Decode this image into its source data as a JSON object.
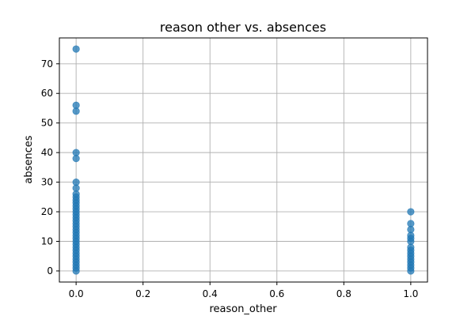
{
  "chart_data": {
    "type": "scatter",
    "title": "reason other vs. absences",
    "xlabel": "reason_other",
    "ylabel": "absences",
    "xlim": [
      -0.05,
      1.05
    ],
    "ylim": [
      -3.75,
      78.75
    ],
    "xticks": [
      0.0,
      0.2,
      0.4,
      0.6,
      0.8,
      1.0
    ],
    "xtick_labels": [
      "0.0",
      "0.2",
      "0.4",
      "0.6",
      "0.8",
      "1.0"
    ],
    "yticks": [
      0,
      10,
      20,
      30,
      40,
      50,
      60,
      70
    ],
    "ytick_labels": [
      "0",
      "10",
      "20",
      "30",
      "40",
      "50",
      "60",
      "70"
    ],
    "grid": true,
    "legend": null,
    "series": [
      {
        "color": "#1f77b4",
        "alpha": 0.75,
        "points": [
          {
            "x": 0,
            "y": 0
          },
          {
            "x": 0,
            "y": 1
          },
          {
            "x": 0,
            "y": 2
          },
          {
            "x": 0,
            "y": 3
          },
          {
            "x": 0,
            "y": 4
          },
          {
            "x": 0,
            "y": 5
          },
          {
            "x": 0,
            "y": 6
          },
          {
            "x": 0,
            "y": 7
          },
          {
            "x": 0,
            "y": 8
          },
          {
            "x": 0,
            "y": 9
          },
          {
            "x": 0,
            "y": 10
          },
          {
            "x": 0,
            "y": 11
          },
          {
            "x": 0,
            "y": 12
          },
          {
            "x": 0,
            "y": 13
          },
          {
            "x": 0,
            "y": 14
          },
          {
            "x": 0,
            "y": 15
          },
          {
            "x": 0,
            "y": 16
          },
          {
            "x": 0,
            "y": 17
          },
          {
            "x": 0,
            "y": 18
          },
          {
            "x": 0,
            "y": 19
          },
          {
            "x": 0,
            "y": 20
          },
          {
            "x": 0,
            "y": 21
          },
          {
            "x": 0,
            "y": 22
          },
          {
            "x": 0,
            "y": 23
          },
          {
            "x": 0,
            "y": 24
          },
          {
            "x": 0,
            "y": 25
          },
          {
            "x": 0,
            "y": 26
          },
          {
            "x": 0,
            "y": 28
          },
          {
            "x": 0,
            "y": 30
          },
          {
            "x": 0,
            "y": 38
          },
          {
            "x": 0,
            "y": 40
          },
          {
            "x": 0,
            "y": 54
          },
          {
            "x": 0,
            "y": 56
          },
          {
            "x": 0,
            "y": 75
          },
          {
            "x": 1,
            "y": 0
          },
          {
            "x": 1,
            "y": 1
          },
          {
            "x": 1,
            "y": 2
          },
          {
            "x": 1,
            "y": 3
          },
          {
            "x": 1,
            "y": 4
          },
          {
            "x": 1,
            "y": 5
          },
          {
            "x": 1,
            "y": 6
          },
          {
            "x": 1,
            "y": 7
          },
          {
            "x": 1,
            "y": 8
          },
          {
            "x": 1,
            "y": 10
          },
          {
            "x": 1,
            "y": 11
          },
          {
            "x": 1,
            "y": 12
          },
          {
            "x": 1,
            "y": 14
          },
          {
            "x": 1,
            "y": 16
          },
          {
            "x": 1,
            "y": 20
          }
        ]
      }
    ]
  }
}
